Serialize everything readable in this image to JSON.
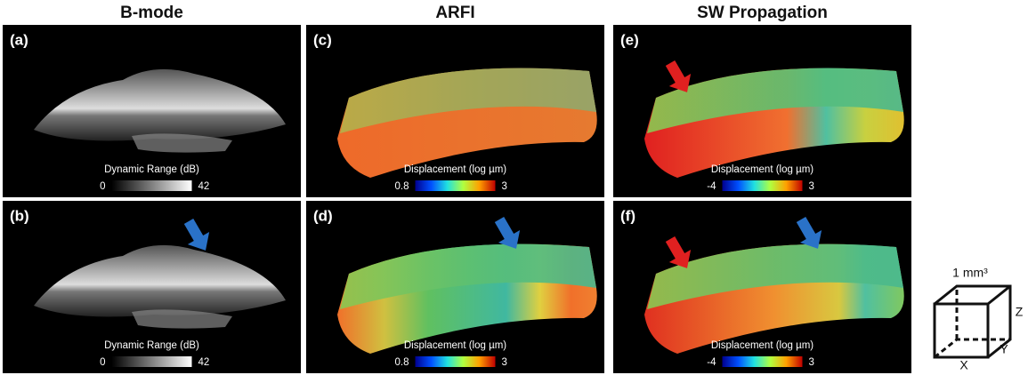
{
  "columns": [
    {
      "title": "B-mode"
    },
    {
      "title": "ARFI"
    },
    {
      "title": "SW Propagation"
    }
  ],
  "panels": [
    {
      "label": "(a)",
      "colorbar": {
        "title": "Dynamic Range (dB)",
        "min": "0",
        "max": "42"
      }
    },
    {
      "label": "(b)",
      "colorbar": {
        "title": "Dynamic Range (dB)",
        "min": "0",
        "max": "42"
      }
    },
    {
      "label": "(c)",
      "colorbar": {
        "title": "Displacement (log µm)",
        "min": "0.8",
        "max": "3"
      }
    },
    {
      "label": "(d)",
      "colorbar": {
        "title": "Displacement (log µm)",
        "min": "0.8",
        "max": "3"
      }
    },
    {
      "label": "(e)",
      "colorbar": {
        "title": "Displacement (log µm)",
        "min": "-4",
        "max": "3"
      }
    },
    {
      "label": "(f)",
      "colorbar": {
        "title": "Displacement (log µm)",
        "min": "-4",
        "max": "3"
      }
    }
  ],
  "scale": {
    "label": "1 mm³",
    "x": "X",
    "y": "Y",
    "z": "Z"
  }
}
